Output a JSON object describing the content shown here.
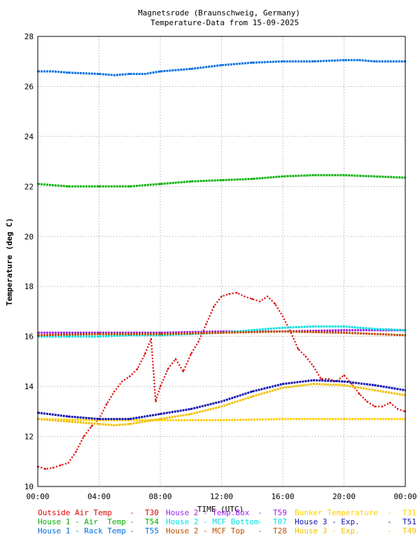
{
  "chart_data": {
    "type": "line",
    "title": "Magnetsrode (Braunschweig, Germany)",
    "subtitle": "Temperature-Data from 15-09-2025",
    "xlabel": "TIME (UTC)",
    "ylabel": "Temperature (deg C)",
    "xlim": [
      0,
      24
    ],
    "ylim": [
      10,
      28
    ],
    "x_ticks": [
      "00:00",
      "04:00",
      "08:00",
      "12:00",
      "16:00",
      "20:00",
      "00:00"
    ],
    "y_ticks": [
      "10",
      "12",
      "14",
      "16",
      "18",
      "20",
      "22",
      "24",
      "26",
      "28"
    ],
    "grid": true,
    "legend_position": "bottom",
    "series": [
      {
        "name": "Outside Air Temp",
        "code": "T30",
        "color": "#e00000",
        "x": [
          0,
          0.5,
          1,
          1.5,
          2,
          2.5,
          3,
          3.5,
          4,
          4.5,
          5,
          5.5,
          6,
          6.5,
          7,
          7.4,
          7.7,
          8,
          8.5,
          9,
          9.5,
          10,
          10.5,
          11,
          11.5,
          12,
          12.5,
          13,
          13.5,
          14,
          14.5,
          15,
          15.5,
          16,
          16.5,
          17,
          17.5,
          18,
          18.5,
          19,
          19.5,
          20,
          20.5,
          21,
          21.5,
          22,
          22.5,
          23,
          23.5,
          24
        ],
        "y": [
          10.8,
          10.7,
          10.75,
          10.85,
          10.95,
          11.4,
          12.0,
          12.4,
          12.7,
          13.3,
          13.8,
          14.2,
          14.4,
          14.7,
          15.3,
          15.9,
          13.4,
          14.0,
          14.7,
          15.1,
          14.6,
          15.3,
          15.8,
          16.5,
          17.2,
          17.6,
          17.7,
          17.75,
          17.6,
          17.5,
          17.4,
          17.6,
          17.3,
          16.8,
          16.2,
          15.5,
          15.2,
          14.8,
          14.3,
          14.3,
          14.2,
          14.45,
          14.1,
          13.7,
          13.4,
          13.2,
          13.2,
          13.35,
          13.1,
          13.0
        ]
      },
      {
        "name": "House 1 - Air  Temp",
        "code": "T54",
        "color": "#00b000",
        "x": [
          0,
          2,
          4,
          6,
          8,
          10,
          12,
          14,
          16,
          18,
          20,
          22,
          24
        ],
        "y": [
          22.1,
          22.0,
          22.0,
          22.0,
          22.1,
          22.2,
          22.25,
          22.3,
          22.4,
          22.45,
          22.45,
          22.4,
          22.35
        ]
      },
      {
        "name": "House 1 - Rack Temp",
        "code": "T55",
        "color": "#0070e0",
        "x": [
          0,
          1,
          2,
          4,
          5,
          6,
          7,
          8,
          10,
          12,
          14,
          16,
          18,
          20,
          21,
          22,
          24
        ],
        "y": [
          26.6,
          26.6,
          26.55,
          26.5,
          26.45,
          26.5,
          26.5,
          26.6,
          26.7,
          26.85,
          26.95,
          27.0,
          27.0,
          27.05,
          27.05,
          27.0,
          27.0
        ]
      },
      {
        "name": "House 2 - Temp.Box",
        "code": "T59",
        "color": "#a020f0",
        "x": [
          0,
          4,
          8,
          12,
          16,
          20,
          24
        ],
        "y": [
          16.15,
          16.15,
          16.15,
          16.2,
          16.2,
          16.25,
          16.25
        ]
      },
      {
        "name": "House 2 - MCF Bottom",
        "code": "T07",
        "color": "#00e0e0",
        "x": [
          0,
          2,
          4,
          6,
          8,
          10,
          12,
          14,
          16,
          18,
          20,
          22,
          24
        ],
        "y": [
          16.0,
          16.0,
          16.0,
          16.05,
          16.05,
          16.1,
          16.15,
          16.25,
          16.35,
          16.4,
          16.4,
          16.3,
          16.25
        ]
      },
      {
        "name": "House 2 - MCF Top",
        "code": "T28",
        "color": "#c05000",
        "x": [
          0,
          4,
          8,
          12,
          16,
          20,
          24
        ],
        "y": [
          16.05,
          16.1,
          16.1,
          16.15,
          16.2,
          16.15,
          16.05
        ]
      },
      {
        "name": "Bunker Temperature",
        "code": "T31",
        "color": "#ffd000",
        "x": [
          0,
          4,
          8,
          12,
          16,
          20,
          24
        ],
        "y": [
          12.7,
          12.65,
          12.65,
          12.65,
          12.7,
          12.7,
          12.7
        ]
      },
      {
        "name": "House 3 - Exp.",
        "code": "T51",
        "color": "#1010b0",
        "x": [
          0,
          2,
          4,
          5,
          6,
          8,
          10,
          12,
          14,
          16,
          18,
          20,
          22,
          24
        ],
        "y": [
          12.95,
          12.8,
          12.7,
          12.7,
          12.7,
          12.9,
          13.1,
          13.4,
          13.8,
          14.1,
          14.25,
          14.2,
          14.05,
          13.85
        ]
      },
      {
        "name": "House 3 - Exp.",
        "code": "T49",
        "color": "#f0c000",
        "x": [
          0,
          2,
          4,
          5,
          6,
          8,
          10,
          12,
          14,
          16,
          18,
          20,
          22,
          24
        ],
        "y": [
          12.7,
          12.6,
          12.5,
          12.45,
          12.5,
          12.7,
          12.9,
          13.2,
          13.6,
          13.95,
          14.1,
          14.05,
          13.85,
          13.65
        ]
      }
    ]
  }
}
